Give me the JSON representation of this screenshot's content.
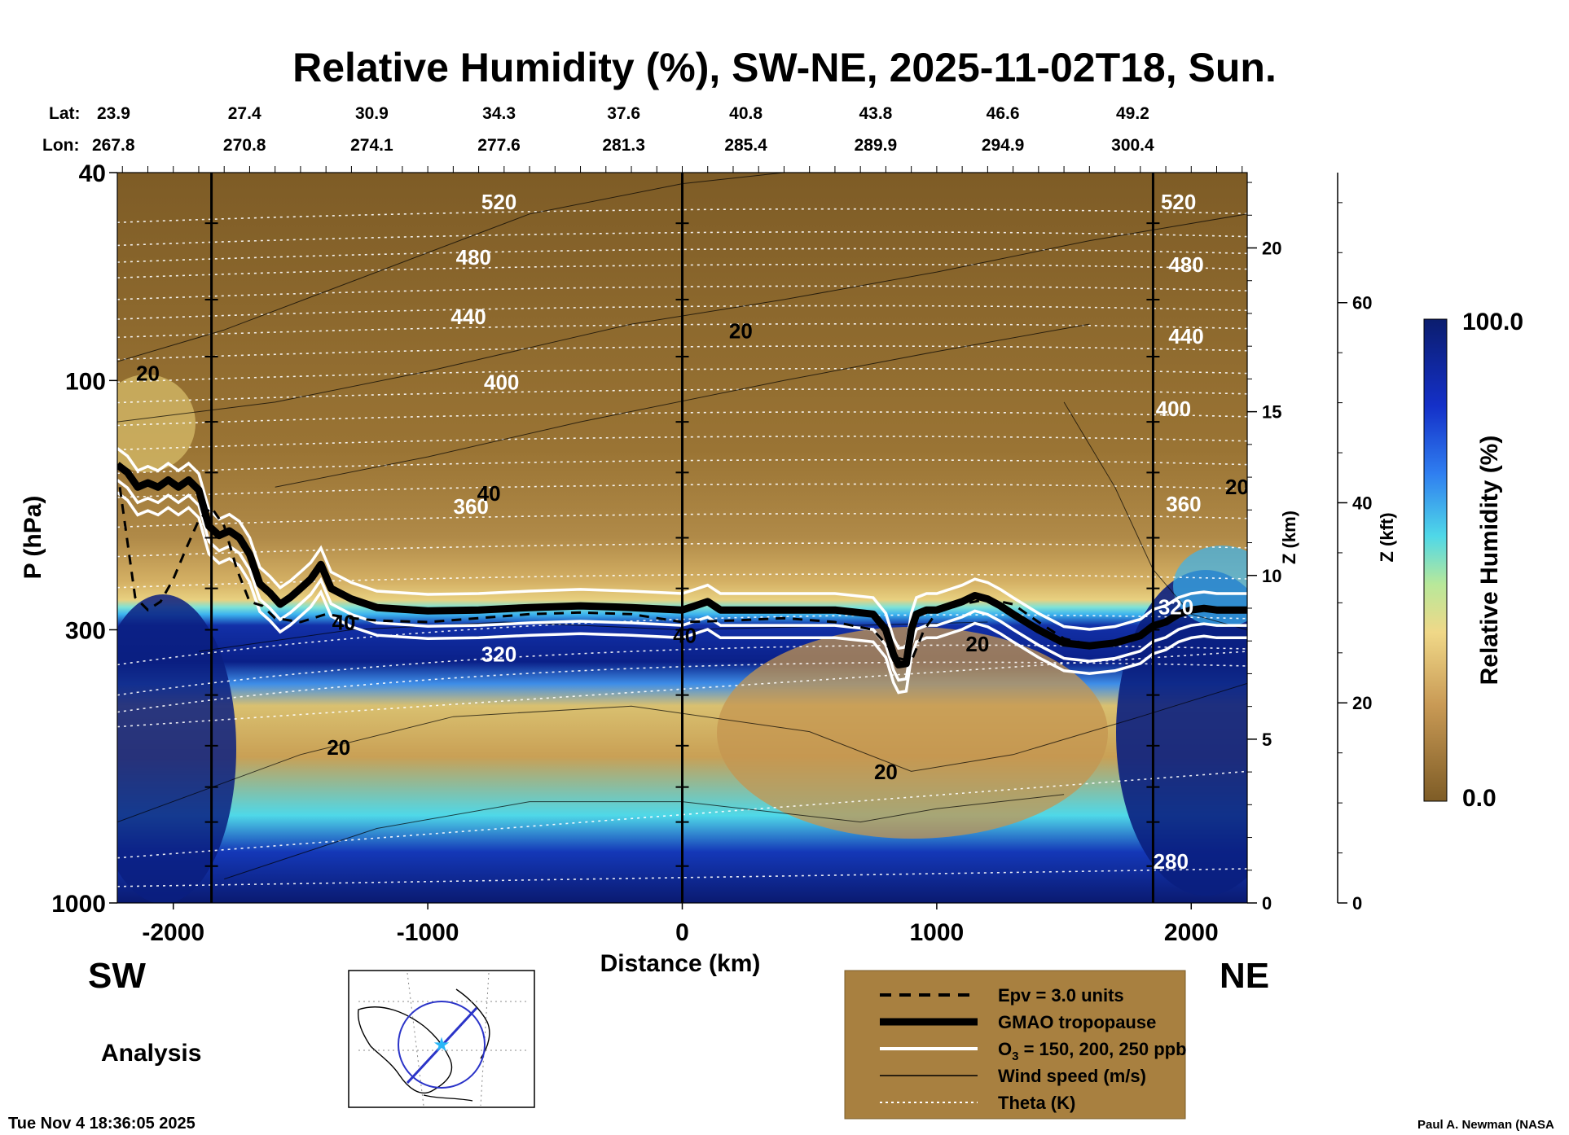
{
  "page": {
    "title": "Relative Humidity (%), SW-NE, 2025-11-02T18, Sun.",
    "lat_label": "Lat:",
    "lon_label": "Lon:",
    "left_region": "SW",
    "right_region": "NE",
    "mode_label": "Analysis",
    "timestamp": "Tue Nov  4 18:36:05 2025",
    "credit": "Paul A. Newman (NASA"
  },
  "chart_data": {
    "type": "heatmap",
    "title": "Relative Humidity (%), SW-NE, 2025-11-02T18, Sun.",
    "xlabel": "Distance (km)",
    "ylabel": "P (hPa)",
    "y2label": "Z (km)",
    "y3label": "Z (kft)",
    "colorbar_label": "Relative Humidity (%)",
    "colorbar_max_label": "100.0",
    "colorbar_min_label": "0.0",
    "xlim": [
      -2220,
      2220
    ],
    "ylim": [
      1000,
      40
    ],
    "x_ticks": [
      -2000,
      -1000,
      0,
      1000,
      2000
    ],
    "x_tick_labels": [
      "-2000",
      "-1000",
      "0",
      "1000",
      "2000"
    ],
    "y_ticks": [
      40,
      100,
      300,
      1000
    ],
    "y_tick_labels": [
      "40",
      "100",
      "300",
      "1000"
    ],
    "z_km_ticks": [
      0,
      5,
      10,
      15,
      20
    ],
    "z_km_tick_labels": [
      "0",
      "5",
      "10",
      "15",
      "20"
    ],
    "z_kft_ticks": [
      0,
      20,
      40,
      60
    ],
    "z_kft_tick_labels": [
      "0",
      "20",
      "40",
      "60"
    ],
    "latitudes": [
      "23.9",
      "27.4",
      "30.9",
      "34.3",
      "37.6",
      "40.8",
      "43.8",
      "46.6",
      "49.2"
    ],
    "longitudes": [
      "267.8",
      "270.8",
      "274.1",
      "277.6",
      "281.3",
      "285.4",
      "289.9",
      "294.9",
      "300.4"
    ],
    "lat_lon_distance_km": [
      -2220,
      -1720,
      -1220,
      -720,
      -230,
      250,
      760,
      1260,
      1770
    ],
    "vertical_markers_km": [
      -1850,
      0,
      1850
    ],
    "colors": {
      "dry": "#8a6730",
      "mid": "#e8c574",
      "cyan": "#4fd8e8",
      "moist": "#0a1f7a",
      "legend_bg": "#a88040"
    },
    "theta_labels": [
      {
        "label": "520",
        "x": -720,
        "p": 47
      },
      {
        "label": "480",
        "x": -820,
        "p": 60
      },
      {
        "label": "440",
        "x": -840,
        "p": 78
      },
      {
        "label": "400",
        "x": -710,
        "p": 104
      },
      {
        "label": "360",
        "x": -830,
        "p": 180
      },
      {
        "label": "320",
        "x": -720,
        "p": 345
      },
      {
        "label": "280",
        "x": 1920,
        "p": 860
      },
      {
        "label": "520",
        "x": 1950,
        "p": 47
      },
      {
        "label": "480",
        "x": 1980,
        "p": 62
      },
      {
        "label": "440",
        "x": 1980,
        "p": 85
      },
      {
        "label": "400",
        "x": 1930,
        "p": 117
      },
      {
        "label": "360",
        "x": 1970,
        "p": 178
      },
      {
        "label": "320",
        "x": 1940,
        "p": 280
      }
    ],
    "wind_labels": [
      {
        "label": "20",
        "x": -2100,
        "p": 100
      },
      {
        "label": "20",
        "x": 230,
        "p": 83
      },
      {
        "label": "40",
        "x": -760,
        "p": 170
      },
      {
        "label": "40",
        "x": -1330,
        "p": 300
      },
      {
        "label": "40",
        "x": 10,
        "p": 318
      },
      {
        "label": "20",
        "x": -1350,
        "p": 520
      },
      {
        "label": "20",
        "x": 800,
        "p": 580
      },
      {
        "label": "20",
        "x": 1160,
        "p": 330
      },
      {
        "label": "20",
        "x": 2180,
        "p": 165
      }
    ],
    "tropopause": {
      "x": [
        -2220,
        -2180,
        -2140,
        -2100,
        -2060,
        -2020,
        -1980,
        -1940,
        -1900,
        -1860,
        -1820,
        -1780,
        -1740,
        -1700,
        -1660,
        -1620,
        -1580,
        -1540,
        -1500,
        -1460,
        -1420,
        -1380,
        -1300,
        -1200,
        -1000,
        -800,
        -600,
        -400,
        -200,
        0,
        50,
        100,
        150,
        200,
        600,
        750,
        800,
        830,
        850,
        880,
        900,
        920,
        960,
        1000,
        1100,
        1150,
        1200,
        1250,
        1300,
        1400,
        1500,
        1550,
        1600,
        1700,
        1800,
        1850,
        1900,
        1950,
        2000,
        2050,
        2100,
        2220
      ],
      "p": [
        145,
        150,
        160,
        157,
        160,
        155,
        160,
        155,
        162,
        190,
        198,
        194,
        200,
        215,
        245,
        255,
        268,
        260,
        250,
        240,
        225,
        250,
        262,
        272,
        276,
        275,
        272,
        270,
        272,
        275,
        270,
        265,
        275,
        275,
        275,
        280,
        300,
        335,
        350,
        348,
        300,
        280,
        275,
        275,
        265,
        258,
        262,
        270,
        280,
        300,
        318,
        320,
        322,
        318,
        308,
        295,
        290,
        280,
        275,
        273,
        275,
        275
      ]
    },
    "epv_3_units": {
      "x": [
        -2210,
        -2150,
        -2100,
        -2050,
        -2000,
        -1950,
        -1900,
        -1850,
        -1800,
        -1750,
        -1700,
        -1650,
        -1600,
        -1500,
        -1400,
        -1300,
        -1200,
        -1000,
        -800,
        -600,
        -400,
        -200,
        0,
        200,
        400,
        600,
        750,
        850,
        900,
        950,
        1000,
        1100,
        1200,
        1300,
        1400,
        1500,
        1600,
        1700
      ],
      "p": [
        160,
        260,
        275,
        265,
        240,
        210,
        185,
        175,
        190,
        230,
        265,
        270,
        285,
        290,
        280,
        285,
        288,
        290,
        285,
        280,
        278,
        280,
        290,
        288,
        285,
        290,
        300,
        340,
        345,
        300,
        278,
        268,
        262,
        268,
        290,
        312,
        320,
        318
      ]
    }
  }
}
